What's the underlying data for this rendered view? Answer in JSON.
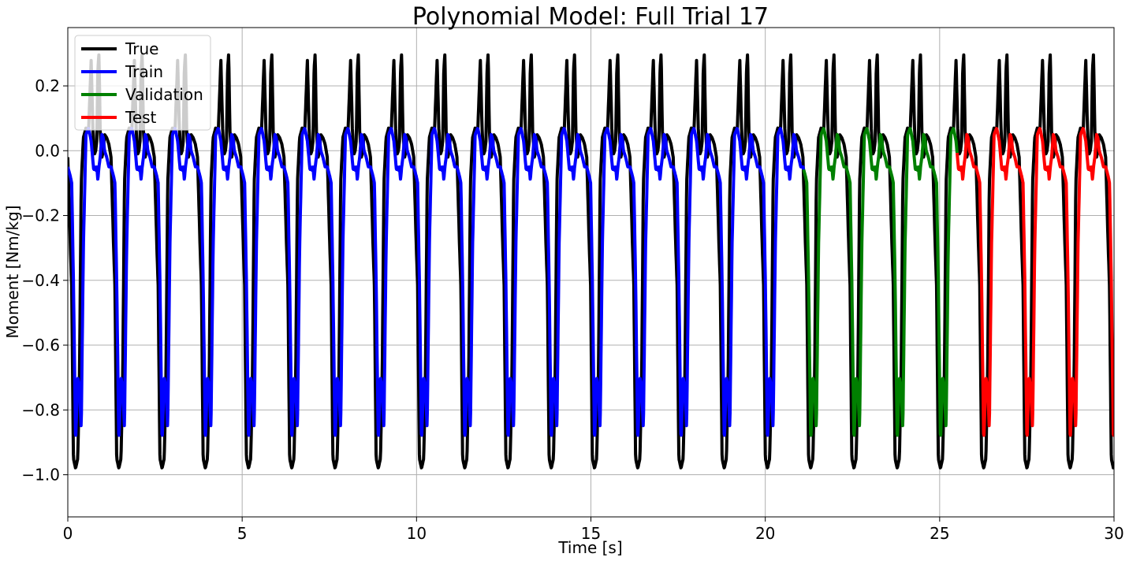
{
  "chart_data": {
    "type": "line",
    "title": "Polynomial Model: Full Trial 17",
    "xlabel": "Time [s]",
    "ylabel": "Moment [Nm/kg]",
    "xlim": [
      0,
      30
    ],
    "ylim": [
      -1.13,
      0.38
    ],
    "xticks": [
      0,
      5,
      10,
      15,
      20,
      25,
      30
    ],
    "xtick_labels": [
      "0",
      "5",
      "10",
      "15",
      "20",
      "25",
      "30"
    ],
    "yticks": [
      0.2,
      0.0,
      -0.2,
      -0.4,
      -0.6,
      -0.8,
      -1.0
    ],
    "ytick_labels": [
      "0.2",
      "0.0",
      "−0.2",
      "−0.4",
      "−0.6",
      "−0.8",
      "−1.0"
    ],
    "grid": true,
    "legend_position": "top-left",
    "legend": [
      "True",
      "Train",
      "Validation",
      "Test"
    ],
    "series": [
      {
        "name": "True",
        "color": "#000000"
      },
      {
        "name": "Train",
        "color": "#0000ff"
      },
      {
        "name": "Validation",
        "color": "#008000"
      },
      {
        "name": "Test",
        "color": "#ff0000"
      }
    ],
    "segments": {
      "train": [
        0,
        21.1
      ],
      "validation": [
        21.1,
        25.5
      ],
      "test": [
        25.5,
        30
      ]
    },
    "stride_period_s": 1.24,
    "stride_template": {
      "phase": [
        0.0,
        0.06,
        0.09,
        0.13,
        0.18,
        0.23,
        0.27,
        0.31,
        0.36,
        0.42,
        0.48,
        0.54,
        0.58,
        0.6,
        0.62,
        0.645,
        0.67,
        0.695,
        0.72,
        0.75,
        0.79,
        0.82,
        0.85,
        0.9,
        0.95,
        1.0
      ],
      "true_y": [
        -0.02,
        -0.3,
        -0.42,
        -0.95,
        -0.98,
        -0.95,
        -0.7,
        -0.1,
        0.04,
        0.07,
        0.06,
        0.28,
        0.07,
        0.02,
        -0.01,
        0.0,
        0.03,
        0.25,
        0.3,
        0.06,
        -0.02,
        0.0,
        0.05,
        0.04,
        0.02,
        -0.02
      ],
      "pred_y": [
        -0.05,
        -0.08,
        -0.1,
        -0.4,
        -0.9,
        -0.7,
        -0.73,
        -0.86,
        -0.3,
        0.05,
        0.07,
        0.03,
        -0.03,
        -0.06,
        -0.05,
        -0.06,
        -0.05,
        -0.09,
        -0.05,
        -0.02,
        0.05,
        0.04,
        0.0,
        -0.02,
        -0.05,
        -0.05
      ]
    }
  }
}
